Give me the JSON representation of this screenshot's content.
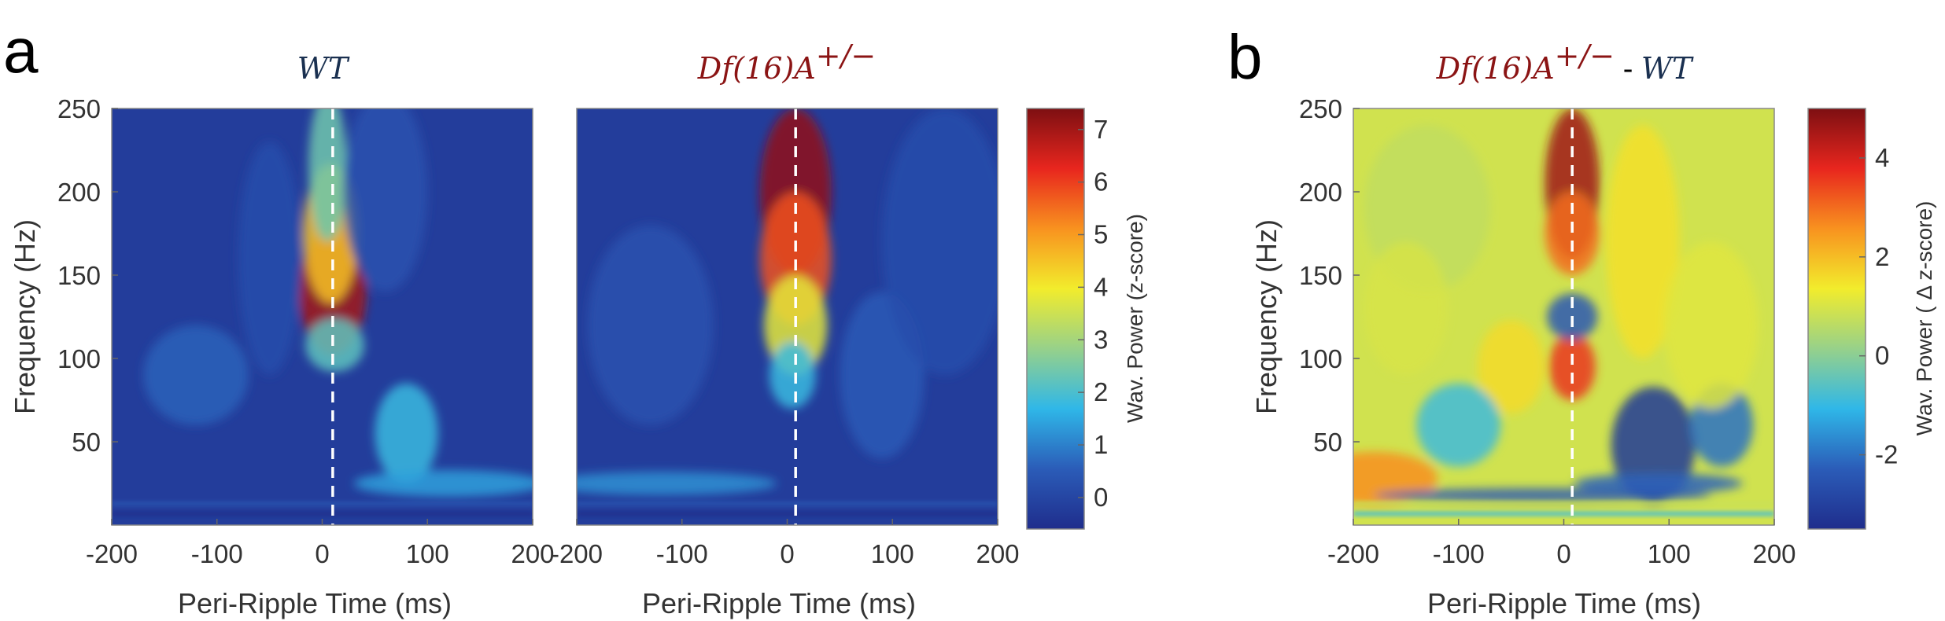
{
  "panel_letters": {
    "a": "a",
    "b": "b"
  },
  "titles": {
    "wt": "WT",
    "df_base": "Df(16)A",
    "df_sup": "+/−",
    "diff_sep": " - ",
    "diff_wt": "WT"
  },
  "colors": {
    "title_wt": "#1a3050",
    "title_df": "#8b1414",
    "marker_line": "#ffffff",
    "colormap": [
      "#1f2d8c",
      "#2b5cb8",
      "#2fb7e8",
      "#97d18a",
      "#f2ec2c",
      "#f8921f",
      "#e8261e",
      "#7d0f12"
    ]
  },
  "chart_data": [
    {
      "type": "heatmap",
      "title": "WT",
      "xlabel": "Peri-Ripple Time (ms)",
      "ylabel": "Frequency (Hz)",
      "xlim": [
        -200,
        200
      ],
      "ylim": [
        0,
        250
      ],
      "xticks": [
        "-200",
        "-100",
        "0",
        "100",
        "200"
      ],
      "yticks": [
        "50",
        "100",
        "150",
        "200",
        "250"
      ],
      "marker_time_ms": 10,
      "peak_z": 7.2,
      "peak_frequency_hz": 140,
      "clim": [
        -0.6,
        7.4
      ],
      "colorbar_label": "Wav. Power (z-score)",
      "colorbar_ticks": [
        "0",
        "1",
        "2",
        "3",
        "4",
        "5",
        "6",
        "7"
      ]
    },
    {
      "type": "heatmap",
      "title": "Df(16)A+/−",
      "xlabel": "Peri-Ripple Time (ms)",
      "xlim": [
        -200,
        200
      ],
      "ylim": [
        0,
        250
      ],
      "xticks": [
        "-200",
        "-100",
        "0",
        "100",
        "200"
      ],
      "marker_time_ms": 8,
      "peak_z": 7.4,
      "peak_frequency_hz": 200,
      "clim": [
        -0.6,
        7.4
      ]
    },
    {
      "type": "heatmap",
      "title": "Df(16)A+/− - WT",
      "xlabel": "Peri-Ripple Time (ms)",
      "ylabel": "Frequency (Hz)",
      "xlim": [
        -200,
        200
      ],
      "ylim": [
        0,
        250
      ],
      "xticks": [
        "-200",
        "-100",
        "0",
        "100",
        "200"
      ],
      "yticks": [
        "50",
        "100",
        "150",
        "200",
        "250"
      ],
      "marker_time_ms": 8,
      "peak_difference": 4.8,
      "peak_difference_frequency_hz": 210,
      "clim": [
        -3.5,
        5.0
      ],
      "colorbar_label": "Wav. Power (  Δ z-score)",
      "colorbar_ticks": [
        "-2",
        "0",
        "2",
        "4"
      ]
    }
  ]
}
